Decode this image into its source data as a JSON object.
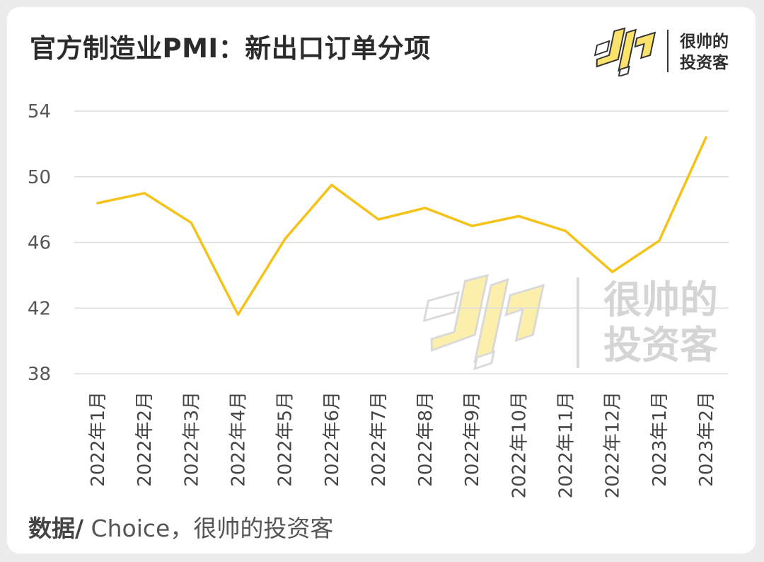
{
  "title": "官方制造业PMI：新出口订单分项",
  "brand": {
    "line1": "很帅的",
    "line2": "投资客",
    "logo_icon": "shuai-logo-icon"
  },
  "watermark": {
    "line1": "很帅的",
    "line2": "投资客"
  },
  "source": {
    "prefix": "数据/",
    "text": " Choice，很帅的投资客"
  },
  "colors": {
    "line": "#f5c218",
    "grid": "#dddddd",
    "logo_fill": "#fbe26a"
  },
  "chart_data": {
    "type": "line",
    "title": "官方制造业PMI：新出口订单分项",
    "categories": [
      "2022年1月",
      "2022年2月",
      "2022年3月",
      "2022年4月",
      "2022年5月",
      "2022年6月",
      "2022年7月",
      "2022年8月",
      "2022年9月",
      "2022年10月",
      "2022年11月",
      "2022年12月",
      "2023年1月",
      "2023年2月"
    ],
    "values": [
      48.4,
      49.0,
      47.2,
      41.6,
      46.2,
      49.5,
      47.4,
      48.1,
      47.0,
      47.6,
      46.7,
      44.2,
      46.1,
      52.4
    ],
    "yticks": [
      38,
      42,
      46,
      50,
      54
    ],
    "ylim": [
      38,
      54
    ],
    "grid": true,
    "legend": "none"
  }
}
